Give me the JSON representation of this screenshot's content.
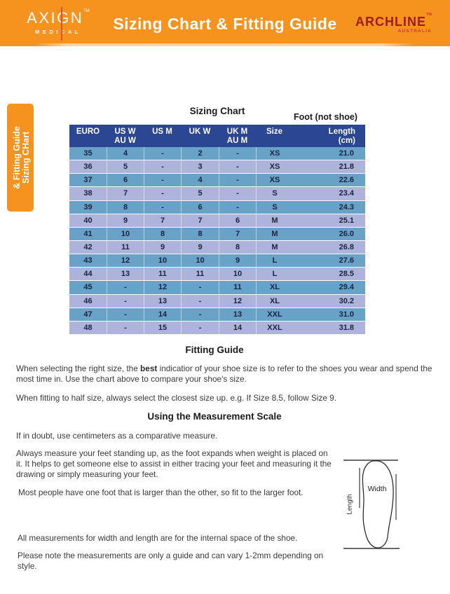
{
  "header": {
    "left_brand": {
      "name": "AXIGN",
      "tm": "TM",
      "sub": "MEDICAL"
    },
    "title": "Sizing Chart & Fitting Guide",
    "right_brand": {
      "name": "ARCHLINE",
      "tm": "TM",
      "sub": "AUSTRALIA"
    }
  },
  "side_tab": {
    "line1": "Sizing CHart",
    "line2": "& Fitting Guide"
  },
  "table": {
    "title": "Sizing Chart",
    "annotation": "Foot (not shoe)",
    "headers": [
      {
        "l1": "EURO",
        "l2": ""
      },
      {
        "l1": "US W",
        "l2": "AU W"
      },
      {
        "l1": "US M",
        "l2": ""
      },
      {
        "l1": "UK W",
        "l2": ""
      },
      {
        "l1": "UK M",
        "l2": "AU M"
      },
      {
        "l1": "Size",
        "l2": ""
      },
      {
        "l1": "Length",
        "l2": "(cm)"
      }
    ],
    "rows": [
      [
        "35",
        "4",
        "-",
        "2",
        "-",
        "XS",
        "21.0"
      ],
      [
        "36",
        "5",
        "-",
        "3",
        "-",
        "XS",
        "21.8"
      ],
      [
        "37",
        "6",
        "-",
        "4",
        "-",
        "XS",
        "22.6"
      ],
      [
        "38",
        "7",
        "-",
        "5",
        "-",
        "S",
        "23.4"
      ],
      [
        "39",
        "8",
        "-",
        "6",
        "-",
        "S",
        "24.3"
      ],
      [
        "40",
        "9",
        "7",
        "7",
        "6",
        "M",
        "25.1"
      ],
      [
        "41",
        "10",
        "8",
        "8",
        "7",
        "M",
        "26.0"
      ],
      [
        "42",
        "11",
        "9",
        "9",
        "8",
        "M",
        "26.8"
      ],
      [
        "43",
        "12",
        "10",
        "10",
        "9",
        "L",
        "27.6"
      ],
      [
        "44",
        "13",
        "11",
        "11",
        "10",
        "L",
        "28.5"
      ],
      [
        "45",
        "-",
        "12",
        "-",
        "11",
        "XL",
        "29.4"
      ],
      [
        "46",
        "-",
        "13",
        "-",
        "12",
        "XL",
        "30.2"
      ],
      [
        "47",
        "-",
        "14",
        "-",
        "13",
        "XXL",
        "31.0"
      ],
      [
        "48",
        "-",
        "15",
        "-",
        "14",
        "XXL",
        "31.8"
      ]
    ]
  },
  "fitting_guide": {
    "heading": "Fitting Guide",
    "p1": {
      "before": "When selecting the right size, the ",
      "bold": "best",
      "after": " indicatior of your shoe size is to refer to the shoes you wear and spend the most time in. Use the chart above to compare your shoe's size."
    },
    "p2": "When fitting to half size, always select the closest size up. e.g. If Size 8.5, follow Size 9."
  },
  "measurement_scale": {
    "heading": "Using the Measurement Scale",
    "p1": "If in doubt, use centimeters as a comparative measure.",
    "p2": "Always measure your feet standing up, as the foot expands when weight is placed on it. It helps to get someone else to assist in either tracing your feet and measuring it the drawing or simply measuring your feet.",
    "p3": "Most people have one foot that is larger than the other, so fit to the larger foot.",
    "p4": "All measurements for width and length are for the internal space of the shoe.",
    "p5": "Please note the measurements are only a guide and can vary 1-2mm depending on style."
  },
  "diagram": {
    "width_label": "Width",
    "length_label": "Length"
  },
  "colors": {
    "orange": "#F6921E",
    "navy": "#2B4693",
    "row_blue": "#68A2C7",
    "row_periwinkle": "#AEB3DB",
    "brand_maroon": "#9C1C20",
    "brand_red": "#D6352B",
    "ink": "#1C2340",
    "body_ink": "#3B3B3B"
  }
}
